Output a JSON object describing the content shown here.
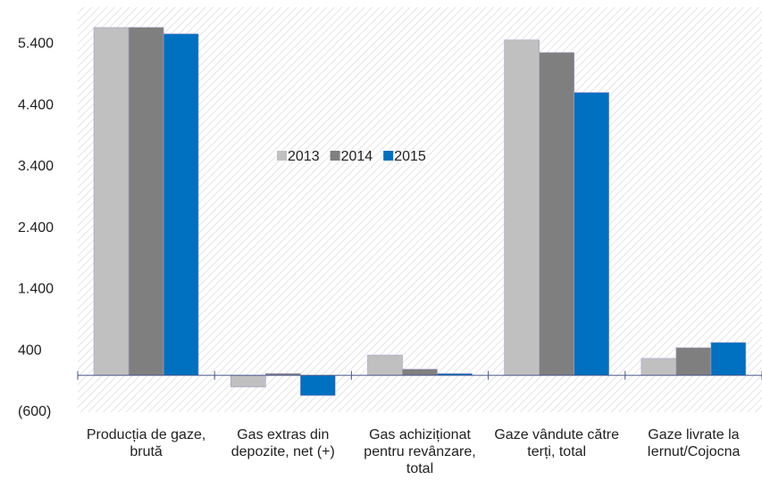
{
  "chart_data": {
    "type": "bar",
    "categories": [
      "Producția de gaze, brută",
      "Gas extras din depozite, net (+)",
      "Gas achiziționat pentru revânzare, total",
      "Gaze vândute către terți, total",
      "Gaze livrate la Iernut/Cojocna"
    ],
    "series": [
      {
        "name": "2013",
        "color": "#c0c0c0",
        "values": [
          5667,
          -190,
          330,
          5465,
          275
        ]
      },
      {
        "name": "2014",
        "color": "#7f7f7f",
        "values": [
          5670,
          30,
          100,
          5260,
          450
        ]
      },
      {
        "name": "2015",
        "color": "#0070c0",
        "values": [
          5565,
          -330,
          30,
          4610,
          535
        ]
      }
    ],
    "ylim": [
      -600,
      6000
    ],
    "yticks": [
      {
        "value": -600,
        "label": "(600)"
      },
      400,
      {
        "value": 1400,
        "label": "1.400"
      },
      {
        "value": 2400,
        "label": "2.400"
      },
      {
        "value": 3400,
        "label": "3.400"
      },
      {
        "value": 4400,
        "label": "4.400"
      },
      {
        "value": 5400,
        "label": "5.400"
      }
    ],
    "legend": "center"
  }
}
